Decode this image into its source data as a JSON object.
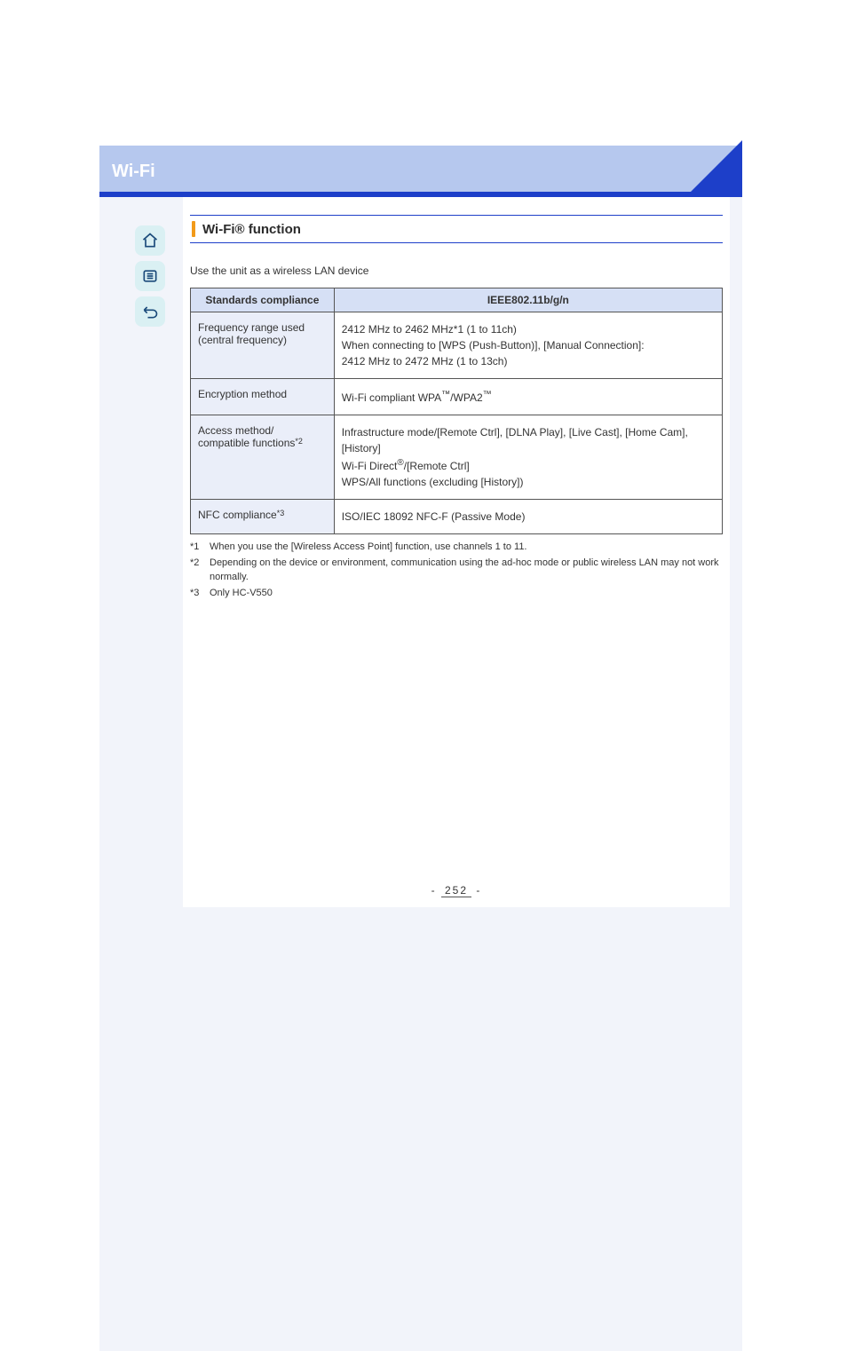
{
  "banner": {
    "title": "Wi-Fi"
  },
  "section": {
    "title": "Wi-Fi® function"
  },
  "intro_text": "Use the unit as a wireless LAN device",
  "table": {
    "header_left": "Standards compliance",
    "header_right": "IEEE802.11b/g/n",
    "rows": [
      {
        "label_html": "Frequency range used (central frequency)",
        "value_html": "2412 MHz to 2462 MHz<span class=\"sup\">*1</span> (1 to 11ch)<br>When connecting to [WPS (Push-Button)], [Manual Connection]:<br>2412 MHz to 2472 MHz (1 to 13ch)"
      },
      {
        "label_html": "Encryption method",
        "value_html": "Wi-Fi compliant WPA<sup>™</sup>/WPA2<sup>™</sup>"
      },
      {
        "label_html": "Access method/<br>compatible functions<span class=\"sup\">*2</span>",
        "value_html": "Infrastructure mode/[Remote Ctrl], [DLNA Play], [Live Cast], [Home Cam], [History]<br>Wi-Fi Direct<sup>®</sup>/[Remote Ctrl]<br>WPS/All functions (excluding [History])"
      },
      {
        "label_html": "NFC compliance<span class=\"sup\">*3</span>",
        "value_html": "ISO/IEC 18092 NFC-F (Passive Mode)"
      }
    ]
  },
  "footnotes": [
    {
      "marker": "*1",
      "text": "When you use the [Wireless Access Point] function, use channels 1 to 11."
    },
    {
      "marker": "*2",
      "text": "Depending on the device or environment, communication using the ad-hoc mode or public wireless LAN may not work normally."
    },
    {
      "marker": "*3",
      "text": "Only HC-V550"
    }
  ],
  "page_number": "252"
}
